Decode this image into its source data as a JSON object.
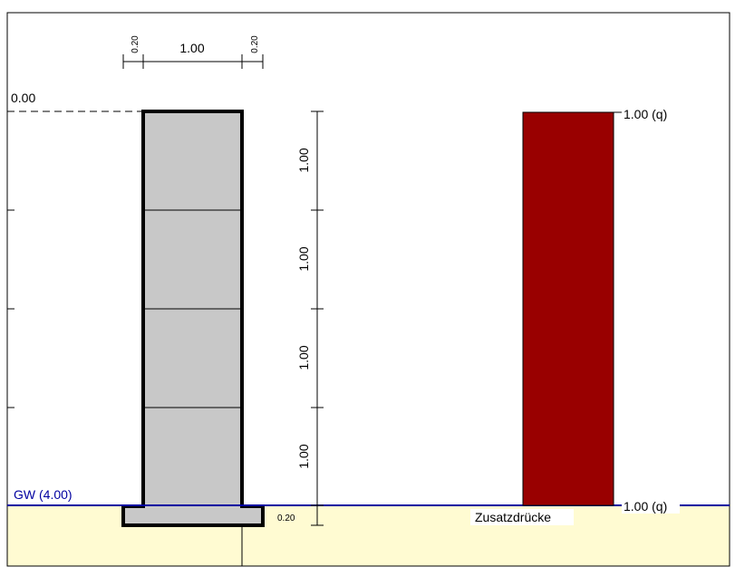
{
  "dimensions": {
    "top": [
      "0.20",
      "1.00",
      "0.20"
    ],
    "vertical": [
      "1.00",
      "1.00",
      "1.00",
      "1.00"
    ],
    "footing": "0.20"
  },
  "level": "0.00",
  "groundwater": "GW (4.00)",
  "loads": {
    "top": "1.00 (q)",
    "bottom": "1.00 (q)",
    "caption": "Zusatzdrücke"
  }
}
